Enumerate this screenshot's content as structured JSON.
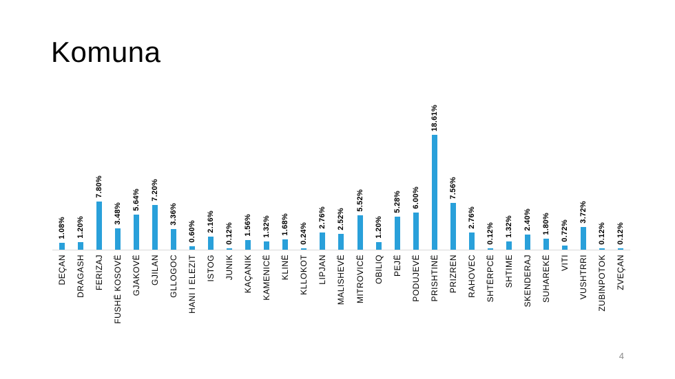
{
  "slide": {
    "title": "Komuna",
    "page_number": "4"
  },
  "chart_data": {
    "type": "bar",
    "title": "Komuna",
    "categories": [
      "DEÇAN",
      "DRAGASH",
      "FERIZAJ",
      "FUSHË KOSOVË",
      "GJAKOVË",
      "GJILAN",
      "GLLOGOC",
      "HANI I ELEZIT",
      "ISTOG",
      "JUNIK",
      "KAÇANIK",
      "KAMENICË",
      "KLINË",
      "KLLOKOT",
      "LIPJAN",
      "MALISHEVË",
      "MITROVICË",
      "OBILIQ",
      "PEJË",
      "PODUJEVË",
      "PRISHTINË",
      "PRIZREN",
      "RAHOVEC",
      "SHTËRPCË",
      "SHTIME",
      "SKENDERAJ",
      "SUHAREKË",
      "VITI",
      "VUSHTRRI",
      "ZUBINPOTOK",
      "ZVEÇAN"
    ],
    "values": [
      1.08,
      1.2,
      7.8,
      3.48,
      5.64,
      7.2,
      3.36,
      0.6,
      2.16,
      0.12,
      1.56,
      1.32,
      1.68,
      0.24,
      2.76,
      2.52,
      5.52,
      1.2,
      5.28,
      6.0,
      18.61,
      7.56,
      2.76,
      0.12,
      1.32,
      2.4,
      1.8,
      0.72,
      3.72,
      0.12,
      0.12
    ],
    "data_labels": [
      "1.08%",
      "1.20%",
      "7.80%",
      "3.48%",
      "5.64%",
      "7.20%",
      "3.36%",
      "0.60%",
      "2.16%",
      "0.12%",
      "1.56%",
      "1.32%",
      "1.68%",
      "0.24%",
      "2.76%",
      "2.52%",
      "5.52%",
      "1.20%",
      "5.28%",
      "6.00%",
      "18.61%",
      "7.56%",
      "2.76%",
      "0.12%",
      "1.32%",
      "2.40%",
      "1.80%",
      "0.72%",
      "3.72%",
      "0.12%",
      "0.12%"
    ],
    "xlabel": "",
    "ylabel": "",
    "ylim": [
      0,
      20
    ],
    "grid": false,
    "legend": "none",
    "label_rotation_deg": 90,
    "bar_color": "#29a0da",
    "axis_line_color": "#d8d8d8",
    "value_label_color": "#000000",
    "category_label_color": "#000000"
  }
}
